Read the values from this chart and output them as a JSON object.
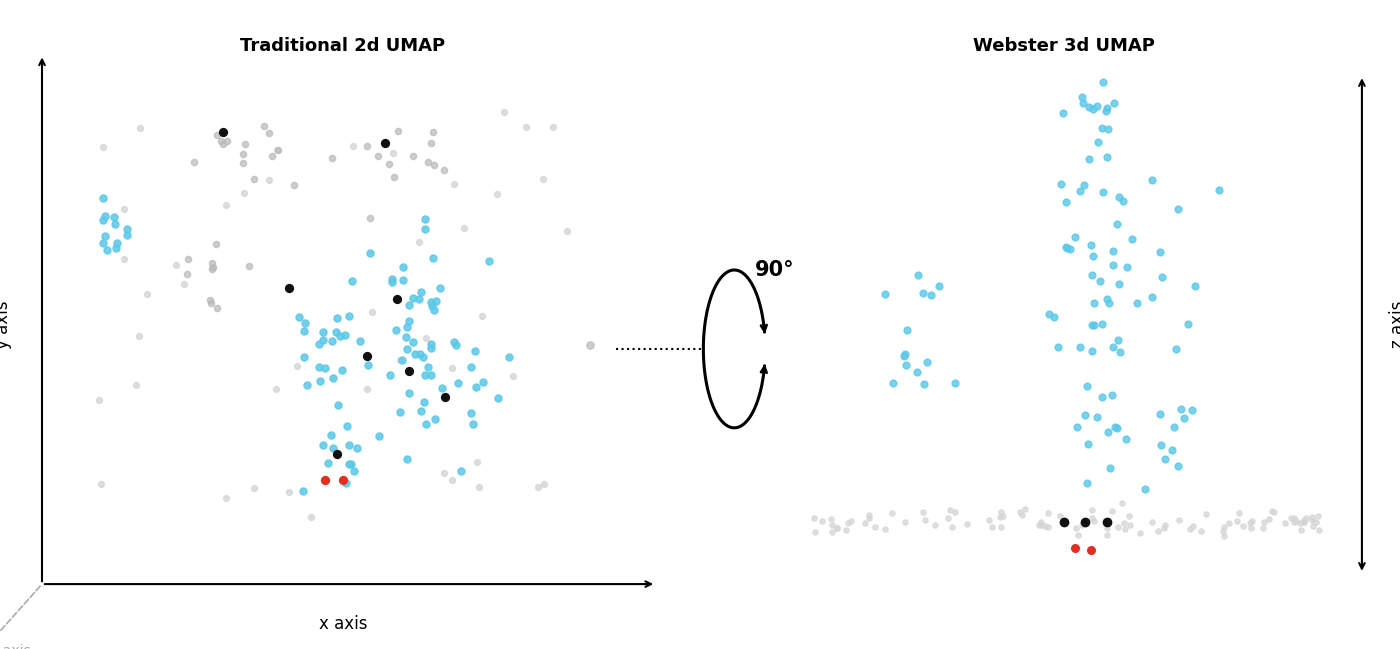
{
  "title_left": "Traditional 2d UMAP",
  "title_right": "Webster 3d UMAP",
  "ylabel_left": "y axis",
  "xlabel_left": "x axis",
  "zlabel_right": "z axis",
  "zlabel_left": "z axis",
  "rotation_label": "90°",
  "bg_color": "#ffffff",
  "point_color_cyan": "#5bc8e8",
  "point_color_black": "#111111",
  "point_color_red": "#e03020",
  "point_color_gray": "#b8b8b8",
  "point_color_lgray": "#d5d5d5",
  "seed": 42
}
